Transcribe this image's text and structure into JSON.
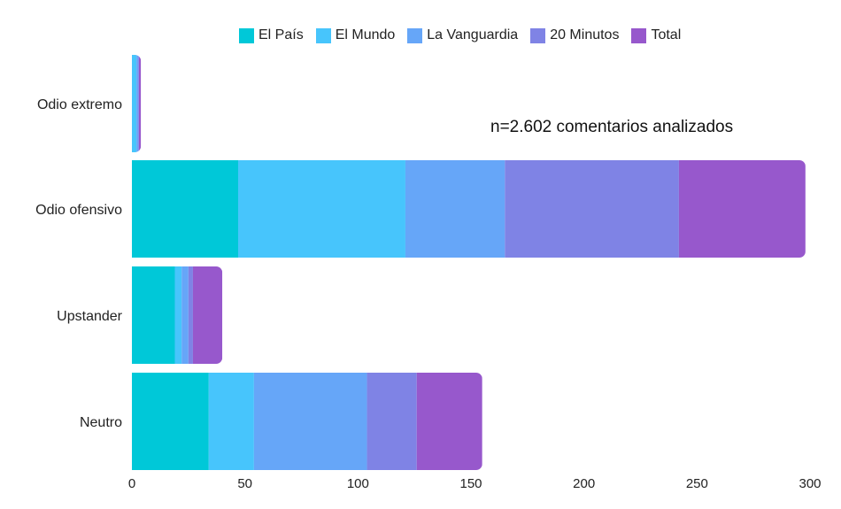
{
  "chart_data": {
    "type": "bar",
    "orientation": "horizontal",
    "stacked": true,
    "categories": [
      "Odio extremo",
      "Odio ofensivo",
      "Upstander",
      "Neutro"
    ],
    "series": [
      {
        "name": "El País",
        "color": "#00C8D8",
        "values": [
          0,
          47,
          19,
          34
        ]
      },
      {
        "name": "El Mundo",
        "color": "#47C5FC",
        "values": [
          2,
          74,
          3,
          20
        ]
      },
      {
        "name": "La Vanguardia",
        "color": "#66A6F8",
        "values": [
          1,
          44,
          3,
          50
        ]
      },
      {
        "name": "20 Minutos",
        "color": "#7F83E5",
        "values": [
          0,
          77,
          2,
          22
        ]
      },
      {
        "name": "Total",
        "color": "#9758CC",
        "values": [
          1,
          56,
          13,
          29
        ]
      }
    ],
    "xlim": [
      0,
      300
    ],
    "xticks": [
      "0",
      "50",
      "100",
      "150",
      "200",
      "250",
      "300"
    ],
    "xtick_values": [
      0,
      50,
      100,
      150,
      200,
      250,
      300
    ],
    "grid": false,
    "legend_position": "top",
    "annotation": "n=2.602 comentarios analizados",
    "title": "",
    "xlabel": "",
    "ylabel": ""
  }
}
